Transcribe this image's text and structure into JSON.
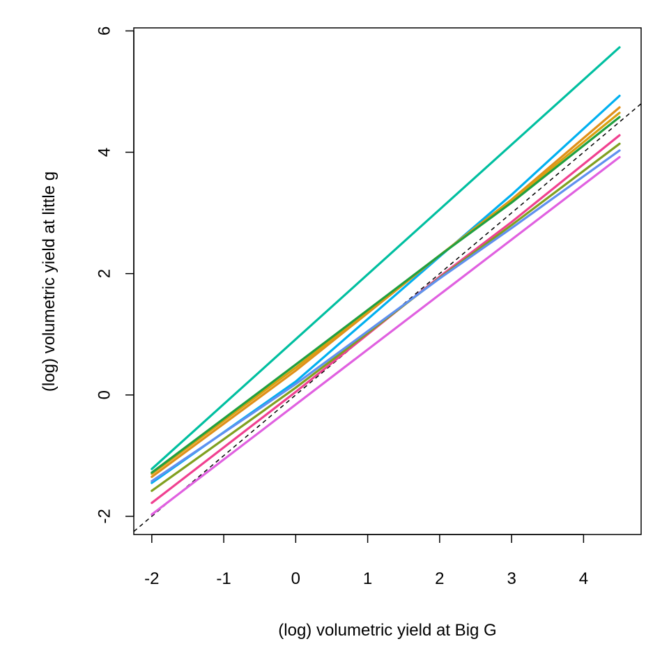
{
  "chart_data": {
    "type": "line",
    "title": "",
    "xlabel": "(log) volumetric yield at Big G",
    "ylabel": "(log) volumetric yield at little g",
    "xlim": [
      -2.25,
      4.8
    ],
    "ylim": [
      -2.3,
      6.05
    ],
    "xticks": [
      -2,
      -1,
      0,
      1,
      2,
      3,
      4
    ],
    "yticks": [
      -2,
      0,
      2,
      4,
      6
    ],
    "xtick_labels": [
      "-2",
      "-1",
      "0",
      "1",
      "2",
      "3",
      "4"
    ],
    "ytick_labels": [
      "-2",
      "0",
      "2",
      "4",
      "6"
    ],
    "grid": false,
    "legend": "none",
    "reference_line": {
      "style": "dashed",
      "color": "#000000",
      "x": [
        -2.25,
        4.8
      ],
      "y": [
        -2.25,
        4.8
      ]
    },
    "series": [
      {
        "color": "#00BFA0",
        "x": [
          -2,
          4.5
        ],
        "y": [
          -1.22,
          5.73
        ]
      },
      {
        "color": "#00B0F0",
        "x": [
          -2,
          0,
          1,
          2,
          3,
          4.5
        ],
        "y": [
          -1.45,
          0.22,
          1.25,
          2.28,
          3.3,
          4.93
        ]
      },
      {
        "color": "#E0901A",
        "x": [
          -2,
          0,
          1,
          2,
          3,
          4.5
        ],
        "y": [
          -1.35,
          0.4,
          1.35,
          2.3,
          3.22,
          4.74
        ]
      },
      {
        "color": "#D8A010",
        "x": [
          -2,
          0,
          1,
          2,
          3,
          4.5
        ],
        "y": [
          -1.3,
          0.45,
          1.38,
          2.3,
          3.2,
          4.65
        ]
      },
      {
        "color": "#20A040",
        "x": [
          -2,
          0,
          1,
          2,
          3,
          4.5
        ],
        "y": [
          -1.28,
          0.5,
          1.4,
          2.3,
          3.17,
          4.58
        ]
      },
      {
        "color": "#F04090",
        "x": [
          -2,
          0,
          1,
          2,
          3,
          4.5
        ],
        "y": [
          -1.78,
          0.05,
          1.0,
          1.95,
          2.85,
          4.28
        ]
      },
      {
        "color": "#80A020",
        "x": [
          -2,
          0,
          1,
          2,
          3,
          4.5
        ],
        "y": [
          -1.58,
          0.12,
          1.02,
          1.93,
          2.8,
          4.14
        ]
      },
      {
        "color": "#6090F0",
        "x": [
          -2,
          0,
          1,
          2,
          3,
          4.5
        ],
        "y": [
          -1.42,
          0.18,
          1.05,
          1.92,
          2.75,
          4.03
        ]
      },
      {
        "color": "#E060E0",
        "x": [
          -2,
          4.5
        ],
        "y": [
          -1.97,
          3.92
        ]
      }
    ]
  }
}
